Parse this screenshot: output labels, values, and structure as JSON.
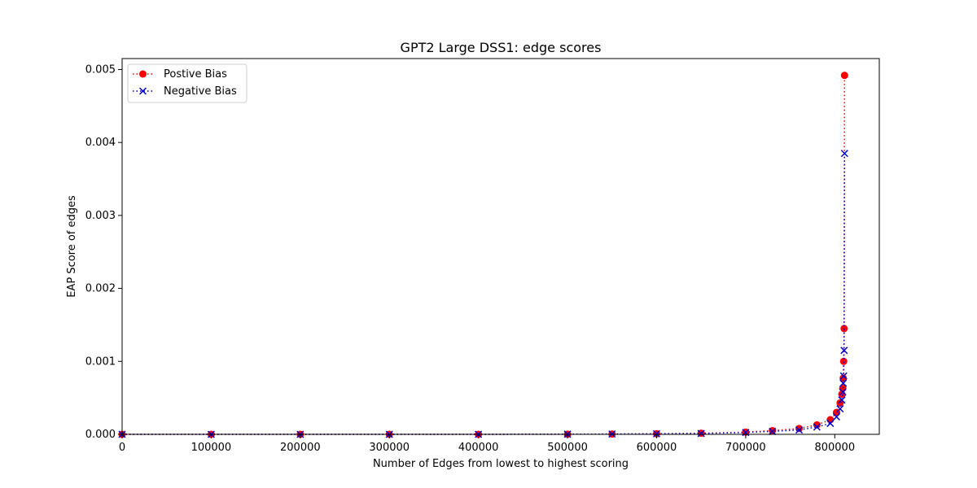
{
  "chart_data": {
    "type": "line",
    "title": "GPT2 Large DSS1: edge scores",
    "xlabel": "Number of Edges from lowest to highest scoring",
    "ylabel": "EAP Score of edges",
    "xlim": [
      0,
      850000
    ],
    "ylim": [
      0,
      0.00515
    ],
    "xticks": [
      0,
      100000,
      200000,
      300000,
      400000,
      500000,
      600000,
      700000,
      800000
    ],
    "xtick_labels": [
      "0",
      "100000",
      "200000",
      "300000",
      "400000",
      "500000",
      "600000",
      "700000",
      "800000"
    ],
    "yticks": [
      0.0,
      0.001,
      0.002,
      0.003,
      0.004,
      0.005
    ],
    "ytick_labels": [
      "0.000",
      "0.001",
      "0.002",
      "0.003",
      "0.004",
      "0.005"
    ],
    "grid": false,
    "legend": {
      "position": "top-left",
      "entries": [
        "Postive Bias",
        "Negative Bias"
      ]
    },
    "series": [
      {
        "name": "Postive Bias",
        "color": "#ff0000",
        "marker": "circle",
        "linestyle": "dotted",
        "points": [
          [
            0,
            0.0
          ],
          [
            100000,
            0.0
          ],
          [
            200000,
            0.0
          ],
          [
            300000,
            0.0
          ],
          [
            400000,
            0.0
          ],
          [
            500000,
            2e-06
          ],
          [
            550000,
            4e-06
          ],
          [
            600000,
            8e-06
          ],
          [
            650000,
            1.5e-05
          ],
          [
            700000,
            3e-05
          ],
          [
            730000,
            5e-05
          ],
          [
            760000,
            8e-05
          ],
          [
            780000,
            0.00013
          ],
          [
            795000,
            0.0002
          ],
          [
            802000,
            0.0003
          ],
          [
            806000,
            0.00043
          ],
          [
            808000,
            0.00055
          ],
          [
            809000,
            0.00063
          ],
          [
            809500,
            0.00077
          ],
          [
            810000,
            0.001
          ],
          [
            810500,
            0.00145
          ],
          [
            811000,
            0.00492
          ]
        ]
      },
      {
        "name": "Negative Bias",
        "color": "#0000cc",
        "marker": "x",
        "linestyle": "dotted",
        "points": [
          [
            0,
            0.0
          ],
          [
            100000,
            0.0
          ],
          [
            200000,
            0.0
          ],
          [
            300000,
            0.0
          ],
          [
            400000,
            0.0
          ],
          [
            500000,
            2e-06
          ],
          [
            550000,
            4e-06
          ],
          [
            600000,
            7e-06
          ],
          [
            650000,
            1.2e-05
          ],
          [
            700000,
            2.5e-05
          ],
          [
            730000,
            4e-05
          ],
          [
            760000,
            6e-05
          ],
          [
            780000,
            0.0001
          ],
          [
            795000,
            0.00015
          ],
          [
            802000,
            0.00024
          ],
          [
            806000,
            0.00035
          ],
          [
            808000,
            0.00047
          ],
          [
            809000,
            0.00058
          ],
          [
            809500,
            0.0007
          ],
          [
            810000,
            0.0008
          ],
          [
            810500,
            0.00115
          ],
          [
            811000,
            0.00385
          ]
        ]
      }
    ]
  }
}
